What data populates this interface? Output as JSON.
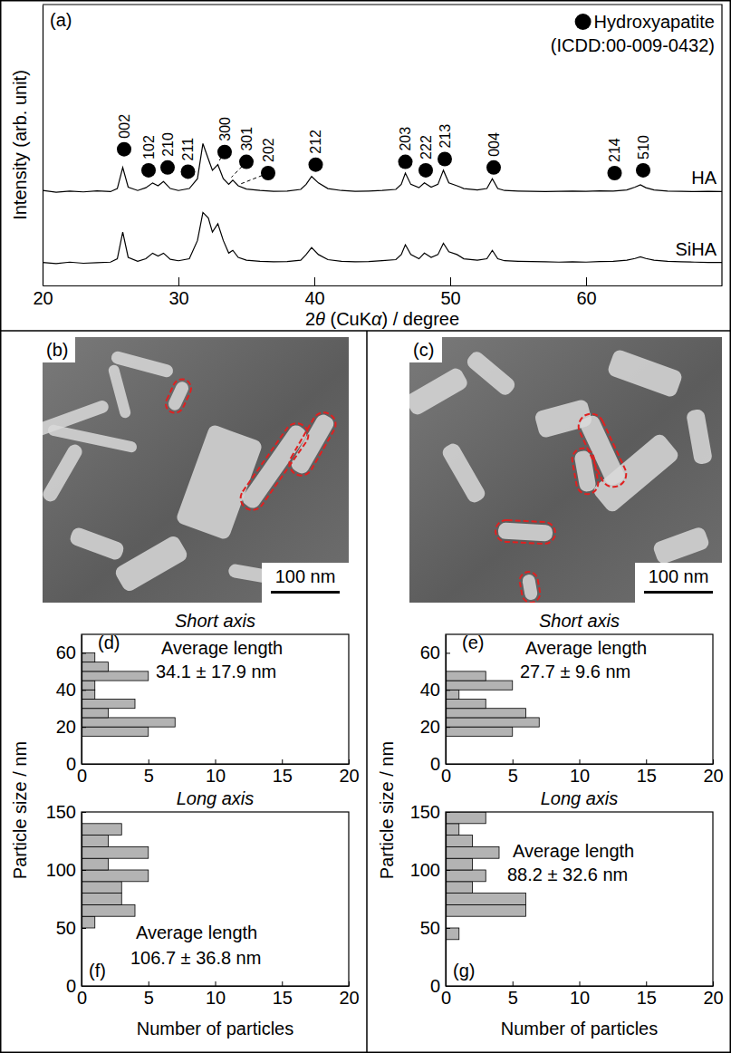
{
  "chart_data": [
    {
      "type": "line",
      "panel": "(a)",
      "xlabel": "2θ (CuKα) / degree",
      "ylabel": "Intensity (arb. unit)",
      "xlim": [
        20,
        70
      ],
      "xticks": [
        20,
        30,
        40,
        50,
        60
      ],
      "ylim": [
        0,
        100
      ],
      "yticks": [],
      "tick_labels": "x",
      "legend": "upper right",
      "reference": {
        "name": "Hydroxyapatite",
        "card": "(ICDD:00-009-0432)",
        "marker": "circle"
      },
      "x": [
        20,
        21,
        22,
        23,
        24,
        25,
        25.5,
        25.9,
        26.3,
        27,
        27.6,
        28.1,
        28.5,
        28.9,
        29.4,
        30,
        30.8,
        31.4,
        31.8,
        32.2,
        32.5,
        32.9,
        33.3,
        33.7,
        34,
        34.4,
        35,
        36,
        37,
        38,
        39,
        39.4,
        39.8,
        40.3,
        41,
        42,
        43,
        44,
        45,
        46,
        46.4,
        46.7,
        47.1,
        47.7,
        48.1,
        48.6,
        49.1,
        49.5,
        49.9,
        50.5,
        51,
        52,
        52.7,
        53.1,
        53.5,
        54,
        55,
        56,
        57,
        58,
        59,
        60,
        61,
        62,
        63,
        63.6,
        64,
        64.4,
        65,
        66,
        67,
        68,
        69,
        70
      ],
      "series": [
        {
          "name": "HA",
          "color": "#000000",
          "values": [
            33.8,
            33.2,
            33.6,
            33.3,
            33.7,
            33.4,
            34.5,
            42,
            35,
            33.8,
            34.8,
            36.5,
            35.5,
            37,
            34.5,
            33.8,
            34.5,
            38,
            50.5,
            45,
            41,
            43,
            38,
            36,
            37.5,
            35.5,
            34.3,
            33.8,
            33.5,
            33.6,
            34.2,
            36,
            38.8,
            36.5,
            34.5,
            33.8,
            33.5,
            33.6,
            33.8,
            34.2,
            36,
            40,
            36,
            34.8,
            36.5,
            35,
            36,
            41,
            36.5,
            35.5,
            34.5,
            34,
            34.5,
            38,
            34.5,
            33.8,
            33.6,
            33.5,
            33.4,
            33.5,
            33.6,
            33.5,
            33.7,
            33.6,
            34,
            35,
            35.8,
            34.8,
            34,
            33.6,
            33.5,
            33.4,
            33.5,
            33.4
          ]
        },
        {
          "name": "SiHA",
          "color": "#000000",
          "values": [
            8.2,
            7.8,
            8.3,
            7.9,
            8.1,
            8.3,
            9.5,
            19,
            10,
            8.6,
            9.5,
            11.5,
            10.5,
            11.5,
            9.3,
            8.8,
            9.5,
            16,
            26,
            24,
            19,
            22,
            16,
            11.5,
            12.5,
            10,
            9,
            8.6,
            8.4,
            8.5,
            9,
            11,
            13.5,
            11,
            9.2,
            8.6,
            8.4,
            8.5,
            8.8,
            9.2,
            11,
            14.5,
            11,
            9.5,
            11.5,
            10,
            11,
            15,
            12,
            11,
            9.5,
            9,
            9.5,
            12.5,
            9.5,
            8.8,
            8.6,
            8.5,
            8.4,
            8.3,
            8.4,
            8.3,
            8.5,
            8.6,
            9,
            9.6,
            10.2,
            9.6,
            9,
            8.6,
            8.4,
            8.3,
            8.2,
            8.2
          ]
        }
      ],
      "peaks": [
        {
          "label": "002",
          "x": 26,
          "y": 48.5
        },
        {
          "label": "102",
          "x": 27.8,
          "y": 41
        },
        {
          "label": "210",
          "x": 29.2,
          "y": 42
        },
        {
          "label": "211",
          "x": 30.7,
          "y": 40.5
        },
        {
          "label": "300",
          "x": 33.4,
          "y": 47.5,
          "line_to": [
            32.95,
            44
          ]
        },
        {
          "label": "301",
          "x": 35,
          "y": 44,
          "line_to": [
            33.9,
            38.5
          ]
        },
        {
          "label": "202",
          "x": 36.6,
          "y": 40,
          "line_to": [
            34.5,
            36
          ]
        },
        {
          "label": "212",
          "x": 40.1,
          "y": 43
        },
        {
          "label": "203",
          "x": 46.7,
          "y": 44
        },
        {
          "label": "222",
          "x": 48.2,
          "y": 41
        },
        {
          "label": "213",
          "x": 49.6,
          "y": 45
        },
        {
          "label": "004",
          "x": 53.2,
          "y": 42
        },
        {
          "label": "214",
          "x": 62.1,
          "y": 40
        },
        {
          "label": "510",
          "x": 64.2,
          "y": 41
        }
      ]
    },
    {
      "type": "image",
      "panel": "(b)",
      "scale_bar": {
        "value": 100,
        "label": "100 nm"
      }
    },
    {
      "type": "image",
      "panel": "(c)",
      "scale_bar": {
        "value": 100,
        "label": "100 nm"
      }
    },
    {
      "type": "histogram",
      "panel": "(d)",
      "title": "Short axis",
      "orientation": "horizontal",
      "ylabel": "Particle size / nm",
      "bins": [
        15,
        20,
        25,
        30,
        35,
        40,
        45,
        50,
        55,
        60
      ],
      "values": [
        5,
        7,
        2,
        4,
        1,
        1,
        5,
        2,
        1
      ],
      "color": "#b3b3b3",
      "xlim": [
        0,
        20
      ],
      "xticks": [
        0,
        5,
        10,
        15,
        20
      ],
      "ylim": [
        0,
        70
      ],
      "yticks": [
        0,
        20,
        40,
        60
      ],
      "stat_label": "Average length",
      "stat": "34.1 ± 17.9 nm"
    },
    {
      "type": "histogram",
      "panel": "(e)",
      "title": "Short axis",
      "orientation": "horizontal",
      "ylabel": "Particle size / nm",
      "bins": [
        15,
        20,
        25,
        30,
        35,
        40,
        45,
        50
      ],
      "values": [
        5,
        7,
        6,
        3,
        1,
        5,
        3
      ],
      "color": "#b3b3b3",
      "xlim": [
        0,
        20
      ],
      "xticks": [
        0,
        5,
        10,
        15,
        20
      ],
      "ylim": [
        0,
        70
      ],
      "yticks": [
        0,
        20,
        40,
        60
      ],
      "stat_label": "Average length",
      "stat": "27.7 ± 9.6 nm"
    },
    {
      "type": "histogram",
      "panel": "(f)",
      "title": "Long axis",
      "orientation": "horizontal",
      "xlabel": "Number of particles",
      "bins": [
        50,
        60,
        70,
        80,
        90,
        100,
        110,
        120,
        130,
        140
      ],
      "values": [
        1,
        4,
        3,
        3,
        5,
        2,
        5,
        2,
        3
      ],
      "color": "#b3b3b3",
      "xlim": [
        0,
        20
      ],
      "xticks": [
        0,
        5,
        10,
        15,
        20
      ],
      "ylim": [
        0,
        150
      ],
      "yticks": [
        0,
        50,
        100,
        150
      ],
      "stat_label": "Average length",
      "stat": "106.7 ± 36.8 nm"
    },
    {
      "type": "histogram",
      "panel": "(g)",
      "title": "Long axis",
      "orientation": "horizontal",
      "xlabel": "Number of particles",
      "bins": [
        40,
        50,
        60,
        70,
        80,
        90,
        100,
        110,
        120,
        130,
        140,
        150
      ],
      "values": [
        1,
        0,
        6,
        6,
        2,
        3,
        2,
        4,
        2,
        1,
        3
      ],
      "color": "#b3b3b3",
      "xlim": [
        0,
        20
      ],
      "xticks": [
        0,
        5,
        10,
        15,
        20
      ],
      "ylim": [
        0,
        150
      ],
      "yticks": [
        0,
        50,
        100,
        150
      ],
      "stat_label": "Average length",
      "stat": "88.2 ± 32.6 nm"
    }
  ]
}
